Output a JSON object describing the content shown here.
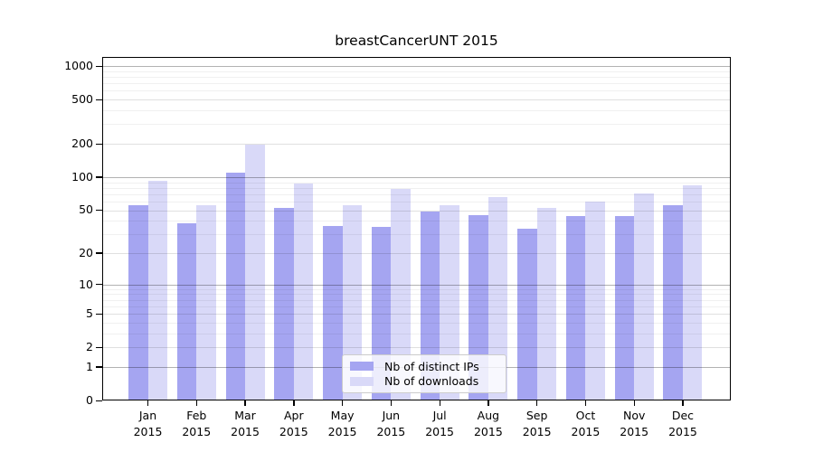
{
  "chart_data": {
    "type": "bar",
    "title": "breastCancerUNT 2015",
    "xlabel": "",
    "ylabel": "",
    "y_scale": "log1p",
    "y_ticks": [
      0,
      1,
      2,
      5,
      10,
      20,
      50,
      100,
      200,
      500,
      1000
    ],
    "y_max": 1207,
    "grid": "horizontal major+minor",
    "legend_position": "lower center",
    "categories": [
      "Jan",
      "Feb",
      "Mar",
      "Apr",
      "May",
      "Jun",
      "Jul",
      "Aug",
      "Sep",
      "Oct",
      "Nov",
      "Dec"
    ],
    "year": "2015",
    "series": [
      {
        "name": "Nb of distinct IPs",
        "color": "#a5a5f1",
        "values": [
          55,
          38,
          110,
          52,
          36,
          35,
          49,
          45,
          34,
          44,
          44,
          55
        ]
      },
      {
        "name": "Nb of downloads",
        "color": "#d9d9f8",
        "values": [
          92,
          55,
          197,
          88,
          55,
          78,
          55,
          66,
          52,
          60,
          71,
          84
        ]
      }
    ],
    "colors": {
      "frame": "#000000",
      "background": "#ffffff"
    }
  }
}
